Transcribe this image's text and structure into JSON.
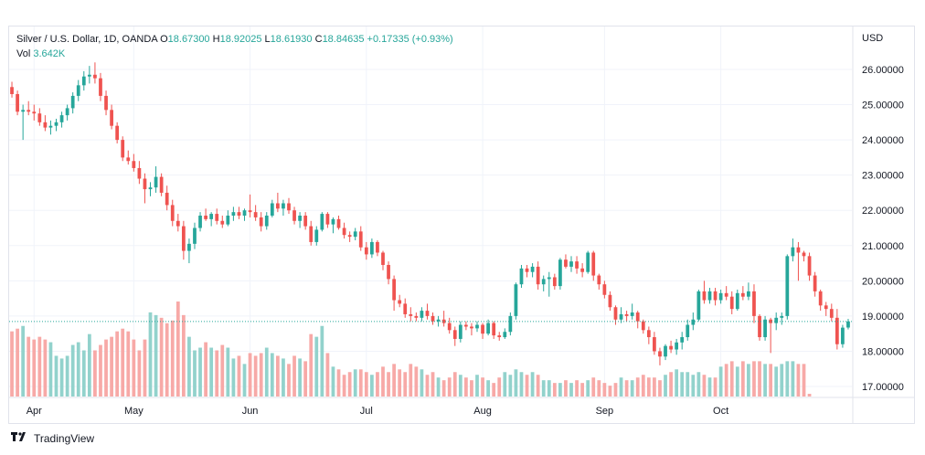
{
  "legend": {
    "symbol": "Silver / U.S. Dollar, 1D, OANDA",
    "o_label": "O",
    "o_value": "18.67300",
    "h_label": "H",
    "h_value": "18.92025",
    "l_label": "L",
    "l_value": "18.61930",
    "c_label": "C",
    "c_value": "18.84635",
    "change": "+0.17335 (+0.93%)",
    "vol_label": "Vol",
    "vol_value": "3.642K"
  },
  "currency": "USD",
  "watermark": "TradingView",
  "colors": {
    "up": "#26a69a",
    "down": "#ef5350",
    "up_vol": "#92d2cc",
    "down_vol": "#f7a9a7",
    "grid": "#f0f3fa",
    "text": "#131722"
  },
  "chart_data": {
    "type": "candlestick",
    "y_axis_labels": [
      "26.00000",
      "25.00000",
      "24.00000",
      "23.00000",
      "22.00000",
      "21.00000",
      "20.00000",
      "19.00000",
      "18.00000",
      "17.00000"
    ],
    "ylim": [
      16.8,
      26.8
    ],
    "x_axis_labels": [
      "Apr",
      "May",
      "Jun",
      "Jul",
      "Aug",
      "Sep",
      "Oct"
    ],
    "last_price": 18.84635,
    "candles": [
      [
        25.5,
        25.65,
        25.2,
        25.3
      ],
      [
        25.3,
        25.4,
        24.7,
        24.8
      ],
      [
        24.8,
        25.0,
        24.0,
        24.85
      ],
      [
        24.85,
        25.1,
        24.7,
        24.8
      ],
      [
        24.8,
        25.0,
        24.55,
        24.75
      ],
      [
        24.75,
        24.9,
        24.4,
        24.5
      ],
      [
        24.5,
        24.7,
        24.25,
        24.35
      ],
      [
        24.35,
        24.55,
        24.15,
        24.4
      ],
      [
        24.4,
        24.6,
        24.25,
        24.5
      ],
      [
        24.5,
        24.8,
        24.35,
        24.7
      ],
      [
        24.7,
        25.0,
        24.55,
        24.9
      ],
      [
        24.9,
        25.35,
        24.75,
        25.25
      ],
      [
        25.25,
        25.7,
        25.1,
        25.55
      ],
      [
        25.55,
        25.95,
        25.4,
        25.8
      ],
      [
        25.8,
        26.1,
        25.6,
        25.85
      ],
      [
        25.85,
        26.2,
        25.6,
        25.75
      ],
      [
        25.75,
        25.9,
        25.1,
        25.25
      ],
      [
        25.25,
        25.4,
        24.7,
        24.85
      ],
      [
        24.85,
        25.0,
        24.3,
        24.4
      ],
      [
        24.4,
        24.5,
        23.9,
        24.0
      ],
      [
        24.0,
        24.1,
        23.4,
        23.5
      ],
      [
        23.5,
        23.7,
        23.3,
        23.4
      ],
      [
        23.4,
        23.6,
        23.1,
        23.2
      ],
      [
        23.2,
        23.4,
        22.75,
        22.9
      ],
      [
        22.9,
        23.05,
        22.2,
        22.6
      ],
      [
        22.6,
        22.8,
        22.4,
        22.65
      ],
      [
        22.65,
        23.25,
        22.5,
        22.95
      ],
      [
        22.95,
        23.05,
        22.4,
        22.5
      ],
      [
        22.5,
        22.7,
        22.0,
        22.15
      ],
      [
        22.15,
        22.3,
        21.55,
        21.7
      ],
      [
        21.7,
        21.9,
        21.4,
        21.55
      ],
      [
        21.55,
        21.7,
        20.6,
        20.85
      ],
      [
        20.85,
        21.2,
        20.5,
        21.05
      ],
      [
        21.05,
        21.65,
        20.9,
        21.5
      ],
      [
        21.5,
        21.95,
        21.4,
        21.85
      ],
      [
        21.85,
        22.05,
        21.7,
        21.75
      ],
      [
        21.75,
        21.95,
        21.55,
        21.9
      ],
      [
        21.9,
        22.05,
        21.6,
        21.7
      ],
      [
        21.7,
        21.85,
        21.5,
        21.6
      ],
      [
        21.6,
        22.0,
        21.55,
        21.85
      ],
      [
        21.85,
        22.1,
        21.7,
        21.95
      ],
      [
        21.95,
        22.1,
        21.75,
        21.85
      ],
      [
        21.85,
        22.05,
        21.7,
        22.0
      ],
      [
        22.0,
        22.45,
        21.8,
        21.95
      ],
      [
        21.95,
        22.15,
        21.7,
        21.8
      ],
      [
        21.8,
        21.95,
        21.4,
        21.55
      ],
      [
        21.55,
        21.95,
        21.45,
        21.85
      ],
      [
        21.85,
        22.3,
        21.8,
        22.2
      ],
      [
        22.2,
        22.5,
        21.95,
        22.05
      ],
      [
        22.05,
        22.3,
        21.85,
        22.2
      ],
      [
        22.2,
        22.35,
        21.9,
        22.0
      ],
      [
        22.0,
        22.1,
        21.6,
        21.7
      ],
      [
        21.7,
        21.95,
        21.5,
        21.85
      ],
      [
        21.85,
        21.95,
        21.45,
        21.55
      ],
      [
        21.55,
        21.7,
        21.0,
        21.1
      ],
      [
        21.1,
        21.55,
        21.0,
        21.45
      ],
      [
        21.45,
        21.95,
        21.4,
        21.9
      ],
      [
        21.9,
        21.95,
        21.5,
        21.6
      ],
      [
        21.6,
        21.8,
        21.35,
        21.75
      ],
      [
        21.75,
        21.85,
        21.45,
        21.5
      ],
      [
        21.5,
        21.65,
        21.2,
        21.3
      ],
      [
        21.3,
        21.4,
        21.1,
        21.25
      ],
      [
        21.25,
        21.5,
        21.15,
        21.4
      ],
      [
        21.4,
        21.55,
        20.85,
        20.95
      ],
      [
        20.95,
        21.1,
        20.6,
        20.75
      ],
      [
        20.75,
        21.2,
        20.65,
        21.1
      ],
      [
        21.1,
        21.15,
        20.7,
        20.8
      ],
      [
        20.8,
        20.85,
        20.3,
        20.45
      ],
      [
        20.45,
        20.55,
        19.9,
        20.05
      ],
      [
        20.05,
        20.15,
        19.15,
        19.45
      ],
      [
        19.45,
        19.6,
        19.25,
        19.35
      ],
      [
        19.35,
        19.5,
        18.95,
        19.05
      ],
      [
        19.05,
        19.25,
        18.85,
        19.0
      ],
      [
        19.0,
        19.1,
        18.85,
        18.95
      ],
      [
        18.95,
        19.25,
        18.85,
        19.15
      ],
      [
        19.15,
        19.35,
        18.9,
        19.0
      ],
      [
        19.0,
        19.1,
        18.75,
        18.85
      ],
      [
        18.85,
        19.0,
        18.7,
        18.9
      ],
      [
        18.9,
        19.15,
        18.7,
        18.8
      ],
      [
        18.8,
        18.95,
        18.5,
        18.6
      ],
      [
        18.6,
        18.7,
        18.15,
        18.35
      ],
      [
        18.35,
        18.85,
        18.25,
        18.75
      ],
      [
        18.75,
        18.85,
        18.6,
        18.7
      ],
      [
        18.7,
        18.8,
        18.45,
        18.65
      ],
      [
        18.65,
        18.85,
        18.55,
        18.75
      ],
      [
        18.75,
        18.8,
        18.35,
        18.5
      ],
      [
        18.5,
        18.9,
        18.45,
        18.8
      ],
      [
        18.8,
        18.85,
        18.35,
        18.45
      ],
      [
        18.45,
        18.55,
        18.3,
        18.4
      ],
      [
        18.4,
        18.65,
        18.35,
        18.55
      ],
      [
        18.55,
        19.1,
        18.45,
        19.0
      ],
      [
        19.0,
        19.95,
        18.9,
        19.9
      ],
      [
        19.9,
        20.45,
        19.8,
        20.35
      ],
      [
        20.35,
        20.45,
        20.1,
        20.25
      ],
      [
        20.25,
        20.5,
        20.1,
        20.4
      ],
      [
        20.4,
        20.55,
        19.75,
        19.9
      ],
      [
        19.9,
        20.15,
        19.7,
        20.05
      ],
      [
        20.05,
        20.25,
        19.55,
        20.1
      ],
      [
        20.1,
        20.2,
        19.75,
        19.85
      ],
      [
        19.85,
        20.65,
        19.75,
        20.6
      ],
      [
        20.6,
        20.75,
        20.35,
        20.4
      ],
      [
        20.4,
        20.7,
        20.25,
        20.55
      ],
      [
        20.55,
        20.7,
        20.2,
        20.35
      ],
      [
        20.35,
        20.5,
        20.1,
        20.25
      ],
      [
        20.25,
        20.85,
        20.2,
        20.8
      ],
      [
        20.8,
        20.85,
        20.0,
        20.15
      ],
      [
        20.15,
        20.2,
        19.75,
        19.9
      ],
      [
        19.9,
        20.0,
        19.5,
        19.6
      ],
      [
        19.6,
        19.7,
        19.15,
        19.25
      ],
      [
        19.25,
        19.3,
        18.75,
        18.9
      ],
      [
        18.9,
        19.25,
        18.8,
        19.05
      ],
      [
        19.05,
        19.15,
        18.85,
        19.0
      ],
      [
        19.0,
        19.35,
        18.9,
        19.1
      ],
      [
        19.1,
        19.15,
        18.65,
        18.85
      ],
      [
        18.85,
        18.9,
        18.5,
        18.6
      ],
      [
        18.6,
        18.7,
        18.2,
        18.4
      ],
      [
        18.4,
        18.55,
        17.9,
        18.0
      ],
      [
        18.0,
        18.1,
        17.6,
        17.85
      ],
      [
        17.85,
        18.2,
        17.75,
        18.15
      ],
      [
        18.15,
        18.3,
        17.95,
        18.05
      ],
      [
        18.05,
        18.35,
        17.9,
        18.25
      ],
      [
        18.25,
        18.55,
        18.05,
        18.4
      ],
      [
        18.4,
        18.9,
        18.3,
        18.75
      ],
      [
        18.75,
        19.1,
        18.6,
        18.9
      ],
      [
        18.9,
        19.75,
        18.85,
        19.7
      ],
      [
        19.7,
        20.0,
        19.35,
        19.45
      ],
      [
        19.45,
        19.8,
        19.35,
        19.7
      ],
      [
        19.7,
        19.8,
        19.3,
        19.45
      ],
      [
        19.45,
        19.75,
        19.35,
        19.65
      ],
      [
        19.65,
        19.85,
        19.45,
        19.55
      ],
      [
        19.55,
        19.7,
        19.05,
        19.2
      ],
      [
        19.2,
        19.75,
        19.15,
        19.65
      ],
      [
        19.65,
        19.85,
        19.45,
        19.55
      ],
      [
        19.55,
        19.95,
        19.45,
        19.7
      ],
      [
        19.7,
        19.9,
        18.8,
        19.0
      ],
      [
        19.0,
        19.05,
        18.3,
        18.4
      ],
      [
        18.4,
        19.0,
        18.3,
        18.9
      ],
      [
        18.9,
        18.95,
        17.95,
        18.8
      ],
      [
        18.8,
        19.1,
        18.6,
        18.95
      ],
      [
        18.95,
        19.1,
        18.75,
        19.0
      ],
      [
        19.0,
        20.75,
        18.9,
        20.7
      ],
      [
        20.7,
        21.2,
        20.55,
        20.95
      ],
      [
        20.95,
        21.1,
        20.0,
        20.8
      ],
      [
        20.8,
        20.85,
        20.55,
        20.7
      ],
      [
        20.7,
        20.8,
        20.0,
        20.15
      ],
      [
        20.15,
        20.25,
        19.55,
        19.7
      ],
      [
        19.7,
        19.75,
        19.15,
        19.3
      ],
      [
        19.3,
        19.4,
        19.0,
        19.2
      ],
      [
        19.2,
        19.35,
        18.85,
        18.95
      ],
      [
        18.95,
        19.2,
        18.05,
        18.2
      ],
      [
        18.2,
        18.75,
        18.1,
        18.67
      ],
      [
        18.673,
        18.92025,
        18.6193,
        18.84635
      ]
    ],
    "volumes": [
      12.0,
      12.5,
      13.0,
      11.0,
      10.5,
      11.0,
      10.5,
      10.0,
      7.5,
      7.0,
      7.5,
      9.5,
      10.0,
      8.5,
      11.5,
      8.5,
      9.5,
      10.5,
      11.0,
      12.0,
      12.5,
      12.0,
      10.5,
      8.5,
      10.5,
      15.5,
      15.0,
      14.5,
      13.5,
      14.0,
      17.5,
      15.0,
      11.0,
      8.5,
      9.0,
      10.0,
      9.0,
      8.5,
      9.5,
      9.0,
      7.0,
      7.5,
      6.0,
      8.0,
      7.5,
      8.0,
      9.0,
      8.0,
      7.5,
      7.0,
      6.0,
      7.5,
      7.0,
      6.5,
      11.5,
      11.0,
      13.0,
      8.0,
      5.5,
      5.0,
      4.0,
      4.5,
      5.0,
      5.0,
      4.5,
      4.0,
      4.5,
      5.5,
      4.5,
      6.0,
      5.0,
      4.5,
      6.0,
      5.5,
      5.0,
      4.0,
      4.5,
      3.5,
      3.0,
      3.5,
      4.5,
      4.0,
      3.5,
      3.0,
      4.0,
      3.5,
      3.0,
      2.5,
      3.5,
      4.5,
      4.0,
      5.0,
      4.5,
      4.0,
      4.5,
      4.0,
      3.0,
      3.0,
      2.5,
      2.5,
      3.0,
      2.5,
      3.0,
      2.5,
      3.0,
      3.5,
      3.0,
      2.5,
      2.0,
      2.5,
      3.5,
      3.0,
      3.0,
      3.5,
      4.0,
      3.5,
      3.5,
      3.0,
      4.0,
      4.5,
      5.0,
      4.5,
      4.5,
      4.0,
      4.5,
      4.0,
      3.5,
      3.5,
      5.5,
      6.0,
      6.5,
      5.5,
      6.5,
      6.0,
      6.5,
      6.5,
      6.0,
      6.0,
      5.5,
      6.0,
      6.5,
      6.5,
      6.0,
      6.0,
      0.5
    ],
    "volume_max": 17.5
  }
}
